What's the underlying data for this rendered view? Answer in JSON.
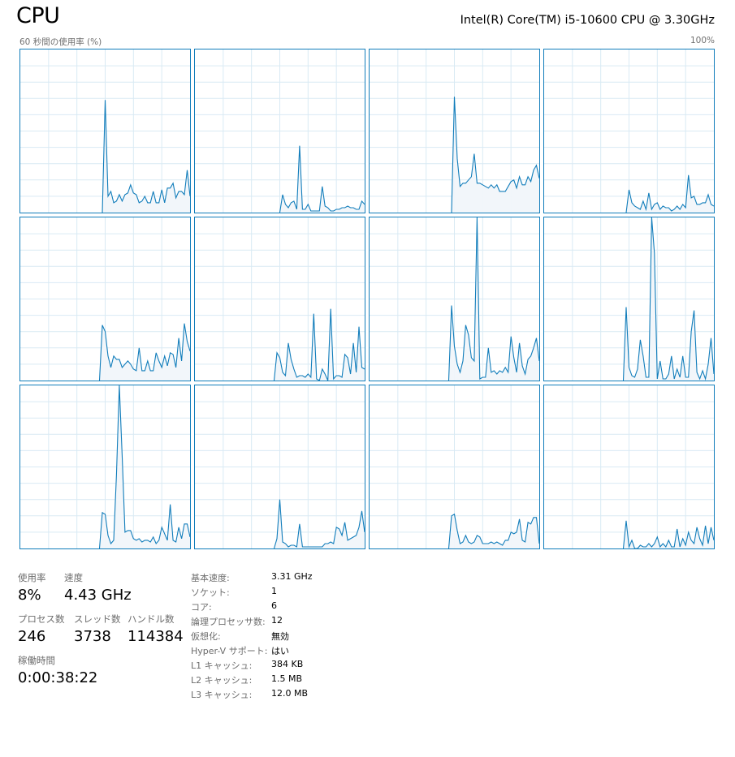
{
  "header": {
    "title": "CPU",
    "model": "Intel(R) Core(TM) i5-10600 CPU @ 3.30GHz"
  },
  "graph_caption": {
    "left": "60 秒間の使用率 (%)",
    "right": "100%"
  },
  "colors": {
    "line": "#117dbb",
    "fill": "#f1f6fa",
    "grid": "#d9eaf4",
    "border": "#117dbb"
  },
  "chart_data": {
    "type": "area",
    "window_seconds": 60,
    "ylim": [
      0,
      100
    ],
    "grid": true,
    "series": [
      {
        "values": [
          0,
          69,
          10,
          13,
          6,
          7,
          11,
          7,
          11,
          12,
          17,
          12,
          11,
          6,
          7,
          10,
          6,
          6,
          13,
          6,
          6,
          14,
          6,
          15,
          15,
          18,
          9,
          13,
          13,
          11,
          26,
          10
        ]
      },
      {
        "values": [
          0,
          11,
          5,
          3,
          6,
          7,
          2,
          41,
          2,
          2,
          5,
          1,
          1,
          1,
          1,
          16,
          4,
          3,
          1,
          1,
          2,
          2,
          3,
          3,
          4,
          3,
          3,
          2,
          2,
          7,
          5
        ]
      },
      {
        "values": [
          0,
          71,
          33,
          16,
          18,
          18,
          20,
          22,
          36,
          18,
          18,
          17,
          16,
          15,
          17,
          15,
          17,
          13,
          13,
          13,
          16,
          19,
          20,
          15,
          22,
          17,
          17,
          22,
          19,
          26,
          29,
          21
        ]
      },
      {
        "values": [
          0,
          14,
          6,
          4,
          3,
          2,
          7,
          2,
          12,
          2,
          5,
          6,
          2,
          4,
          3,
          3,
          1,
          2,
          4,
          2,
          5,
          3,
          23,
          9,
          10,
          5,
          5,
          6,
          6,
          11,
          5,
          4
        ]
      },
      {
        "values": [
          0,
          34,
          30,
          15,
          8,
          15,
          13,
          13,
          8,
          10,
          12,
          10,
          7,
          6,
          20,
          6,
          6,
          12,
          6,
          6,
          17,
          12,
          8,
          15,
          9,
          17,
          16,
          8,
          26,
          12,
          35,
          24,
          18
        ]
      },
      {
        "values": [
          0,
          17,
          14,
          5,
          3,
          23,
          13,
          7,
          2,
          3,
          3,
          2,
          4,
          2,
          41,
          1,
          0,
          7,
          4,
          0,
          44,
          1,
          3,
          3,
          2,
          16,
          14,
          4,
          23,
          5,
          33,
          8,
          7
        ]
      },
      {
        "values": [
          0,
          46,
          21,
          10,
          5,
          12,
          34,
          28,
          14,
          12,
          100,
          1,
          2,
          2,
          20,
          5,
          6,
          4,
          6,
          5,
          8,
          5,
          27,
          14,
          5,
          23,
          9,
          4,
          13,
          15,
          20,
          26,
          12
        ]
      },
      {
        "values": [
          0,
          45,
          8,
          3,
          2,
          7,
          25,
          15,
          2,
          2,
          100,
          78,
          1,
          12,
          1,
          1,
          4,
          15,
          1,
          7,
          2,
          15,
          2,
          2,
          30,
          43,
          5,
          1,
          6,
          1,
          10,
          26,
          4
        ]
      },
      {
        "values": [
          0,
          22,
          21,
          8,
          3,
          5,
          45,
          100,
          57,
          10,
          11,
          11,
          6,
          5,
          6,
          4,
          5,
          5,
          4,
          7,
          3,
          5,
          13,
          9,
          5,
          27,
          5,
          4,
          13,
          6,
          15,
          15,
          7
        ]
      },
      {
        "values": [
          0,
          6,
          30,
          4,
          3,
          1,
          2,
          2,
          1,
          15,
          1,
          1,
          1,
          1,
          1,
          1,
          1,
          1,
          3,
          3,
          4,
          3,
          13,
          12,
          8,
          16,
          5,
          6,
          7,
          8,
          13,
          23,
          10
        ]
      },
      {
        "values": [
          0,
          20,
          21,
          11,
          3,
          4,
          8,
          4,
          3,
          4,
          8,
          7,
          3,
          3,
          3,
          4,
          3,
          4,
          3,
          2,
          5,
          5,
          10,
          9,
          10,
          18,
          5,
          4,
          16,
          15,
          19,
          19,
          3
        ]
      },
      {
        "values": [
          0,
          17,
          1,
          5,
          0,
          0,
          2,
          1,
          1,
          3,
          1,
          3,
          7,
          1,
          3,
          1,
          5,
          1,
          1,
          12,
          1,
          6,
          2,
          10,
          5,
          3,
          13,
          6,
          2,
          14,
          3,
          13,
          5
        ]
      }
    ]
  },
  "stats": {
    "usage": {
      "label": "使用率",
      "value": "8%"
    },
    "speed": {
      "label": "速度",
      "value": "4.43 GHz"
    },
    "processes": {
      "label": "プロセス数",
      "value": "246"
    },
    "threads": {
      "label": "スレッド数",
      "value": "3738"
    },
    "handles": {
      "label": "ハンドル数",
      "value": "114384"
    },
    "uptime": {
      "label": "稼働時間",
      "value": "0:00:38:22"
    }
  },
  "specs": [
    {
      "label": "基本速度:",
      "value": "3.31 GHz"
    },
    {
      "label": "ソケット:",
      "value": "1"
    },
    {
      "label": "コア:",
      "value": "6"
    },
    {
      "label": "論理プロセッサ数:",
      "value": "12"
    },
    {
      "label": "仮想化:",
      "value": "無効"
    },
    {
      "label": "Hyper-V サポート:",
      "value": "はい"
    },
    {
      "label": "L1 キャッシュ:",
      "value": "384 KB"
    },
    {
      "label": "L2 キャッシュ:",
      "value": "1.5 MB"
    },
    {
      "label": "L3 キャッシュ:",
      "value": "12.0 MB"
    }
  ]
}
